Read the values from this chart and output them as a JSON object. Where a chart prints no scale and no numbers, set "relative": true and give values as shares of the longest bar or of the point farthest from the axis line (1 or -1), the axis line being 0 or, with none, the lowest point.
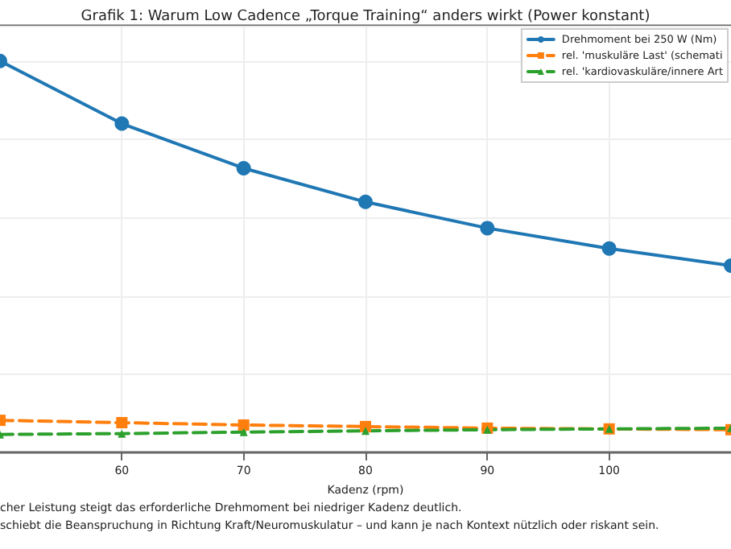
{
  "chart_data": {
    "type": "line",
    "title": "Grafik 1: Warum Low Cadence „Torque Training“ anders wirkt (Power konstant)",
    "xlabel": "Kadenz (rpm)",
    "relative": true,
    "grid": true,
    "legend": "top right",
    "x": [
      50,
      60,
      70,
      80,
      90,
      100,
      110
    ],
    "xlim": [
      50,
      110
    ],
    "xticks": [
      60,
      70,
      80,
      90,
      100
    ],
    "series": [
      {
        "name": "Drehmoment bei 250 W (Nm)",
        "color": "#1f77b4",
        "marker": "circle",
        "line_style": "solid",
        "values": [
          1,
          0.84,
          0.726,
          0.64,
          0.573,
          0.521,
          0.477
        ]
      },
      {
        "name": "rel. 'muskuläre Last' (schemati",
        "color": "#ff7f0e",
        "marker": "square",
        "line_style": "dashed",
        "values": [
          0.082,
          0.076,
          0.07,
          0.066,
          0.062,
          0.06,
          0.058
        ]
      },
      {
        "name": "rel. 'kardiovaskuläre/innere Art",
        "color": "#2ca02c",
        "marker": "triangle",
        "line_style": "dashed",
        "values": [
          0.046,
          0.048,
          0.052,
          0.055,
          0.058,
          0.06,
          0.062
        ]
      }
    ],
    "annotations": [
      "cher Leistung steigt das erforderliche Drehmoment bei niedriger Kadenz deutlich.",
      "schiebt die Beanspruchung in Richtung Kraft/Neuromuskulatur – und kann je nach Kontext nützlich oder riskant sein."
    ]
  }
}
